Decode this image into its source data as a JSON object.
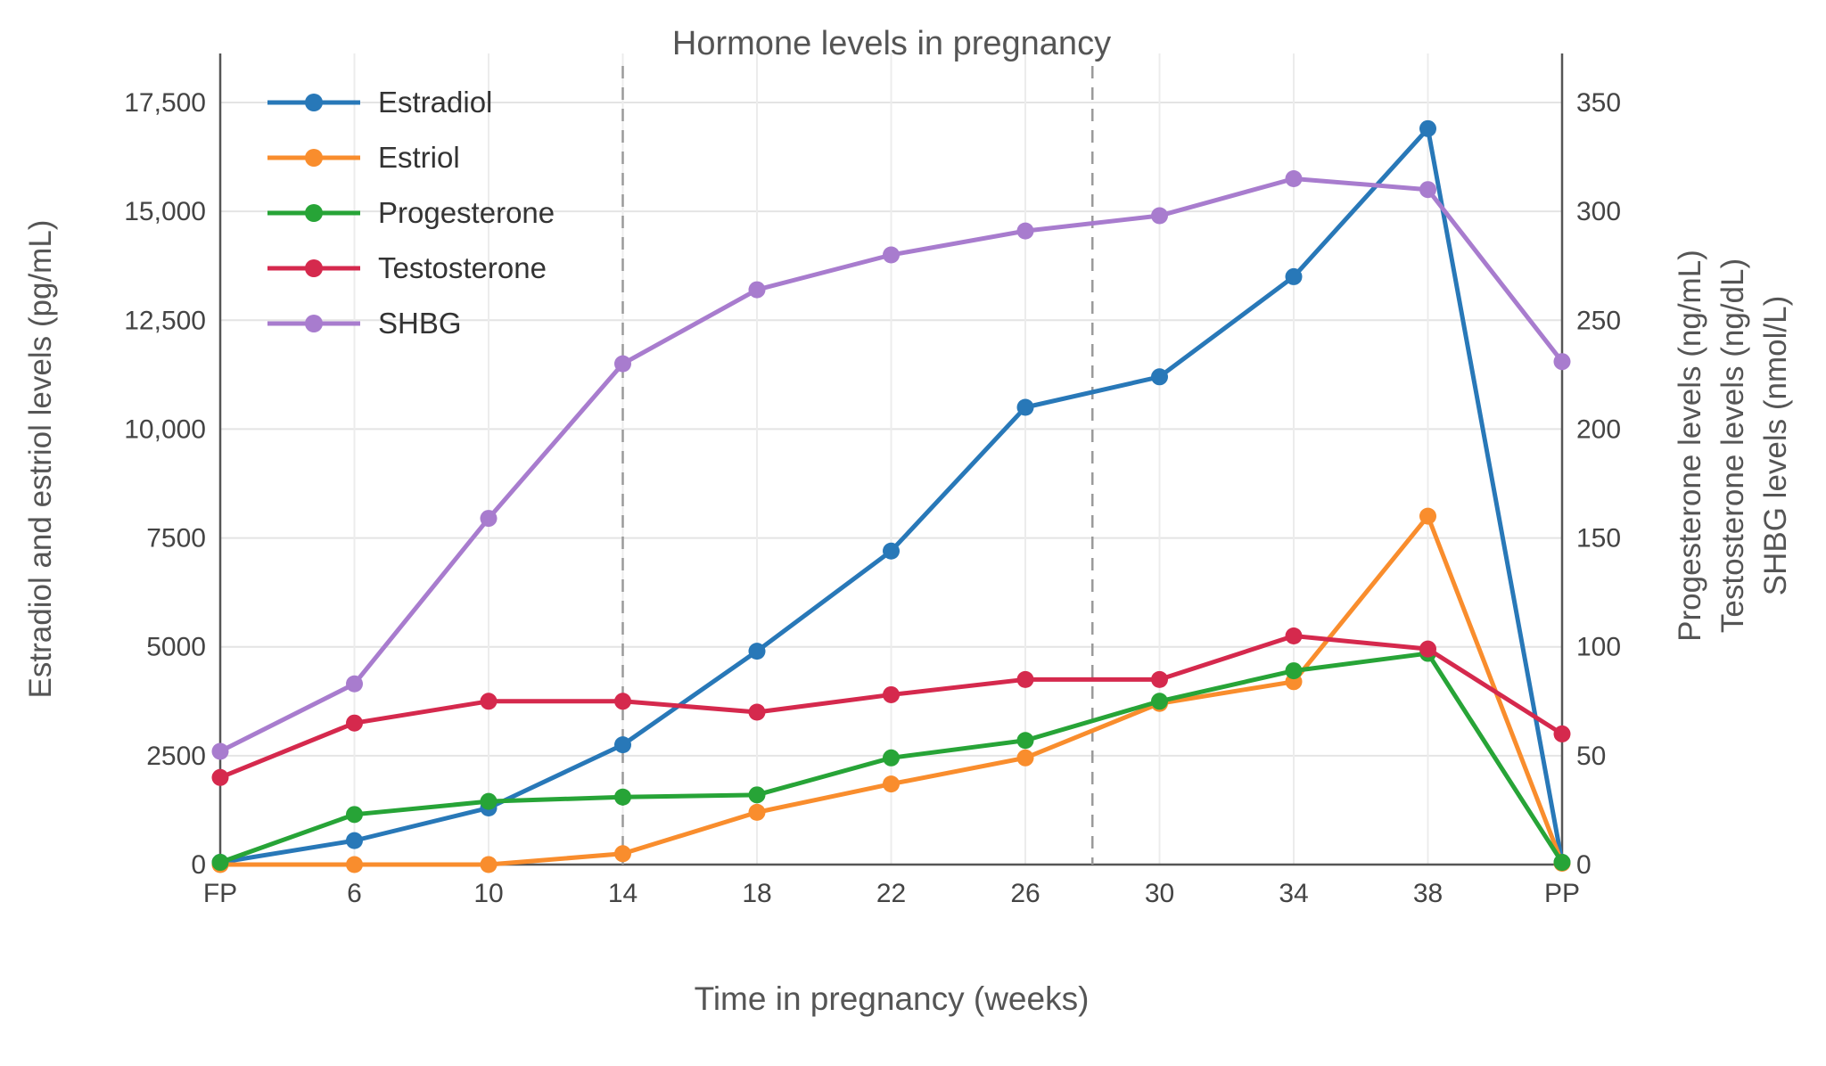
{
  "chart_data": {
    "type": "line",
    "title": "Hormone levels in pregnancy",
    "xlabel": "Time in pregnancy (weeks)",
    "ylabel_left": "Estradiol and estriol levels (pg/mL)",
    "ylabel_right_lines": [
      "Progesterone levels (ng/mL)",
      "Testosterone levels (ng/dL)",
      "SHBG levels (nmol/L)"
    ],
    "categories": [
      "FP",
      "6",
      "10",
      "14",
      "18",
      "22",
      "26",
      "30",
      "34",
      "38",
      "PP"
    ],
    "left_axis": {
      "min": 0,
      "max": 17500,
      "tick_values": [
        0,
        2500,
        5000,
        7500,
        10000,
        12500,
        15000,
        17500
      ],
      "tick_labels": [
        "0",
        "2500",
        "5000",
        "7500",
        "10,000",
        "12,500",
        "15,000",
        "17,500"
      ]
    },
    "right_axis": {
      "min": 0,
      "max": 350,
      "tick_values": [
        0,
        50,
        100,
        150,
        200,
        250,
        300,
        350
      ],
      "tick_labels": [
        "0",
        "50",
        "100",
        "150",
        "200",
        "250",
        "300",
        "350"
      ]
    },
    "reference_lines": {
      "dashed_at_weeks": [
        14,
        28
      ],
      "solid_at_categories": [
        "FP",
        "PP"
      ]
    },
    "grid": true,
    "legend_position": "top-left-inside",
    "series": [
      {
        "name": "Estradiol",
        "color": "#2878b8",
        "axis": "left",
        "values": [
          50,
          550,
          1300,
          2750,
          4900,
          7200,
          10500,
          11200,
          13500,
          16900,
          50
        ]
      },
      {
        "name": "Estriol",
        "color": "#f98d2d",
        "axis": "left",
        "values": [
          0,
          0,
          0,
          250,
          1200,
          1850,
          2450,
          3700,
          4200,
          8000,
          30
        ]
      },
      {
        "name": "Progesterone",
        "color": "#27a437",
        "axis": "right",
        "values": [
          1,
          23,
          29,
          31,
          32,
          49,
          57,
          75,
          89,
          97,
          1
        ]
      },
      {
        "name": "Testosterone",
        "color": "#d5294d",
        "axis": "right",
        "values": [
          40,
          65,
          75,
          75,
          70,
          78,
          85,
          85,
          105,
          99,
          60
        ]
      },
      {
        "name": "SHBG",
        "color": "#a87cce",
        "axis": "right",
        "values": [
          52,
          83,
          159,
          230,
          264,
          280,
          291,
          298,
          315,
          310,
          231
        ]
      }
    ]
  }
}
